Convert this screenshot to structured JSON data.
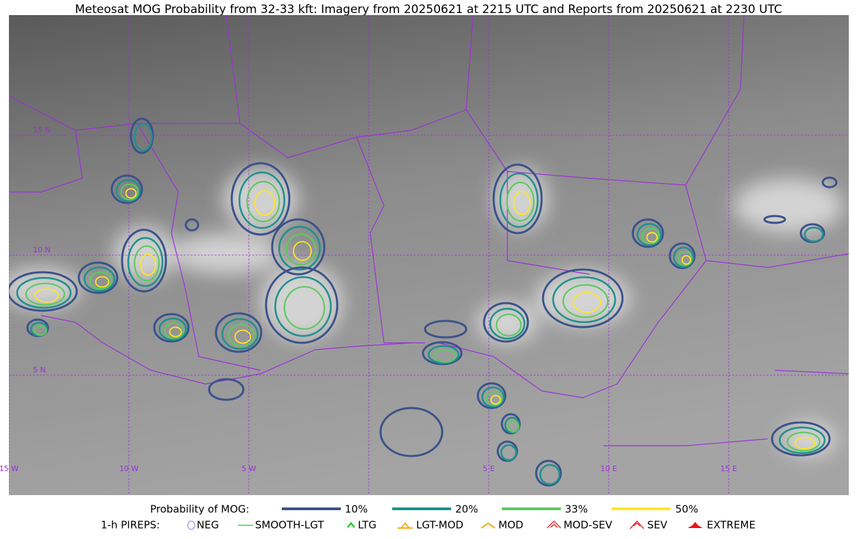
{
  "title": "Meteosat MOG Probability from 32-33 kft: Imagery from 20250621 at 2215 UTC and Reports from 20250621 at 2230 UTC",
  "map": {
    "lat_labels": [
      "15 N",
      "10 N",
      "5 N"
    ],
    "lon_labels": [
      "15 W",
      "10 W",
      "5 W",
      "5 E",
      "10 E",
      "15 E"
    ],
    "grid_color": "#9b30d9"
  },
  "legend": {
    "probability": {
      "label": "Probability of MOG:",
      "items": [
        {
          "label": "10%",
          "color": "#3b528b"
        },
        {
          "label": "20%",
          "color": "#21918c"
        },
        {
          "label": "33%",
          "color": "#5ec962"
        },
        {
          "label": "50%",
          "color": "#fde725"
        }
      ]
    },
    "pireps": {
      "label": "1-h PIREPS:",
      "items": [
        {
          "label": "NEG",
          "color": "#b8b8f0"
        },
        {
          "label": "SMOOTH-LGT",
          "color": "#33dd33"
        },
        {
          "label": "LTG",
          "color": "#22cc22"
        },
        {
          "label": "LGT-MOD",
          "color": "#f0b020"
        },
        {
          "label": "MOD",
          "color": "#f0b020"
        },
        {
          "label": "MOD-SEV",
          "color": "#ee3333"
        },
        {
          "label": "SEV",
          "color": "#ee3333"
        },
        {
          "label": "EXTREME",
          "color": "#ee1111"
        }
      ]
    }
  }
}
